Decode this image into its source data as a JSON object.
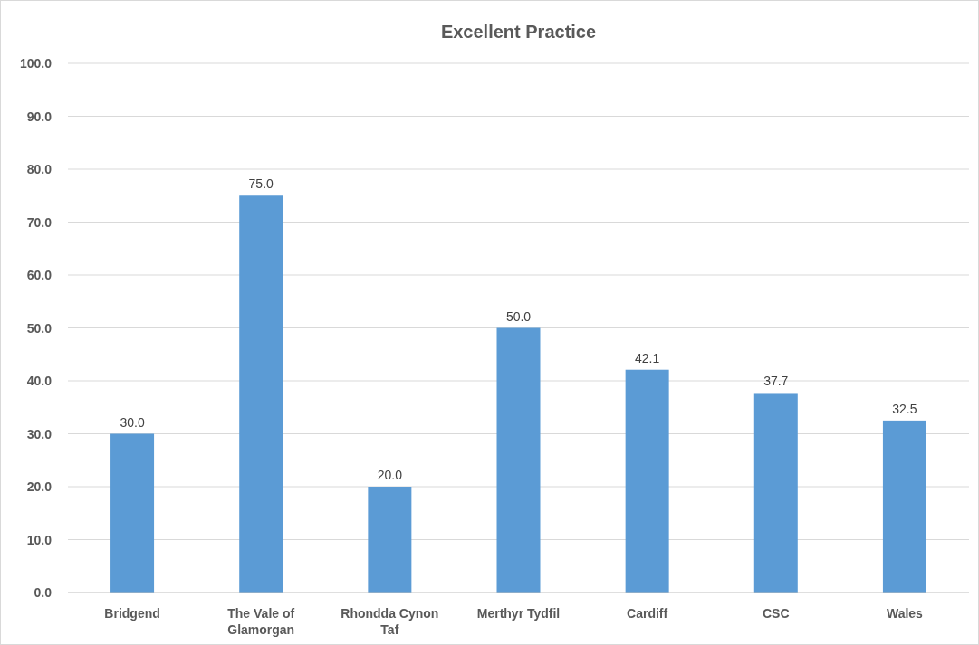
{
  "chart_data": {
    "type": "bar",
    "title": "Excellent Practice",
    "categories": [
      "Bridgend",
      "The Vale of Glamorgan",
      "Rhondda Cynon Taf",
      "Merthyr Tydfil",
      "Cardiff",
      "CSC",
      "Wales"
    ],
    "values": [
      30.0,
      75.0,
      20.0,
      50.0,
      42.1,
      37.7,
      32.5
    ],
    "value_labels": [
      "30.0",
      "75.0",
      "20.0",
      "50.0",
      "42.1",
      "37.7",
      "32.5"
    ],
    "color": "#5b9bd5",
    "ylim": [
      0,
      100
    ],
    "yticks": [
      {
        "value": 0,
        "label": "0.0"
      },
      {
        "value": 10,
        "label": "10.0"
      },
      {
        "value": 20,
        "label": "20.0"
      },
      {
        "value": 30,
        "label": "30.0"
      },
      {
        "value": 40,
        "label": "40.0"
      },
      {
        "value": 50,
        "label": "50.0"
      },
      {
        "value": 60,
        "label": "60.0"
      },
      {
        "value": 70,
        "label": "70.0"
      },
      {
        "value": 80,
        "label": "80.0"
      },
      {
        "value": 90,
        "label": "90.0"
      },
      {
        "value": 100,
        "label": "100.0"
      }
    ],
    "grid": "y"
  }
}
